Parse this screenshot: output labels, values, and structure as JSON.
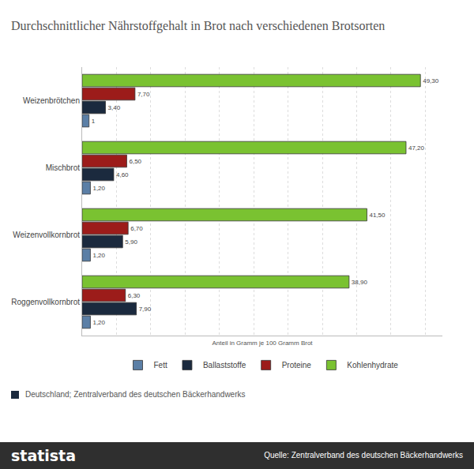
{
  "chart_data": {
    "type": "bar",
    "orientation": "horizontal",
    "title": "Durchschnittlicher Nährstoffgehalt in Brot nach verschiedenen Brotsorten",
    "x_label": "Anteil in Gramm je 100 Gramm Brot",
    "categories": [
      "Weizenbrötchen",
      "Mischbrot",
      "Weizenvollkornbrot",
      "Roggenvollkornbrot"
    ],
    "series": [
      {
        "name": "Fett",
        "color": "#5b7fa6",
        "values": [
          1,
          1.2,
          1.2,
          1.2
        ],
        "value_labels": [
          "1",
          "1,20",
          "1,20",
          "1,20"
        ]
      },
      {
        "name": "Ballaststoffe",
        "color": "#1b2a3e",
        "values": [
          3.4,
          4.6,
          5.9,
          7.9
        ],
        "value_labels": [
          "3,40",
          "4,60",
          "5,90",
          "7,90"
        ]
      },
      {
        "name": "Proteine",
        "color": "#9c1c1a",
        "values": [
          7.7,
          6.5,
          6.7,
          6.3
        ],
        "value_labels": [
          "7,70",
          "6,50",
          "6,70",
          "6,30"
        ]
      },
      {
        "name": "Kohlenhydrate",
        "color": "#7ac231",
        "values": [
          49.3,
          47.2,
          41.5,
          38.9
        ],
        "value_labels": [
          "49,30",
          "47,20",
          "41,50",
          "38,90"
        ]
      }
    ],
    "xlim": [
      0,
      52.5
    ],
    "xticks": [
      0,
      5,
      10,
      15,
      20,
      25,
      30,
      35,
      40,
      45,
      50
    ],
    "tick_labels": "y",
    "grid": true,
    "legend": "bottom",
    "data_labels": true,
    "note": "Deutschland; Zentralverband des deutschen Bäckerhandwerks",
    "source": "Quelle: Zentralverband des deutschen Bäckerhandwerks",
    "brand": "statista"
  }
}
